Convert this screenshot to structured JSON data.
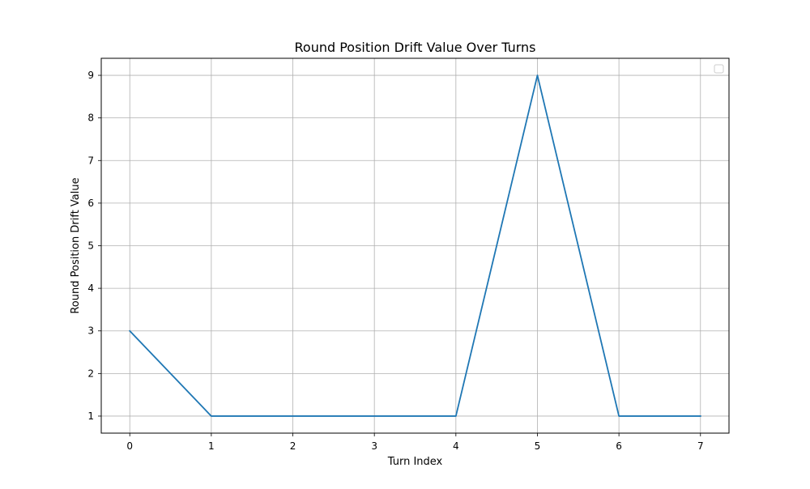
{
  "chart_data": {
    "type": "line",
    "title": "Round Position Drift Value Over Turns",
    "xlabel": "Turn Index",
    "ylabel": "Round Position Drift Value",
    "x": [
      0,
      1,
      2,
      3,
      4,
      5,
      6,
      7
    ],
    "series": [
      {
        "values": [
          3,
          1,
          1,
          1,
          1,
          9,
          1,
          1
        ],
        "color": "#1f77b4"
      }
    ],
    "xlim": [
      -0.35,
      7.35
    ],
    "ylim": [
      0.6,
      9.4
    ],
    "xticks": [
      "0",
      "1",
      "2",
      "3",
      "4",
      "5",
      "6",
      "7"
    ],
    "yticks": [
      "1",
      "2",
      "3",
      "4",
      "5",
      "6",
      "7",
      "8",
      "9"
    ],
    "grid": true,
    "legend": {
      "placement": "top-right",
      "entries": []
    }
  }
}
